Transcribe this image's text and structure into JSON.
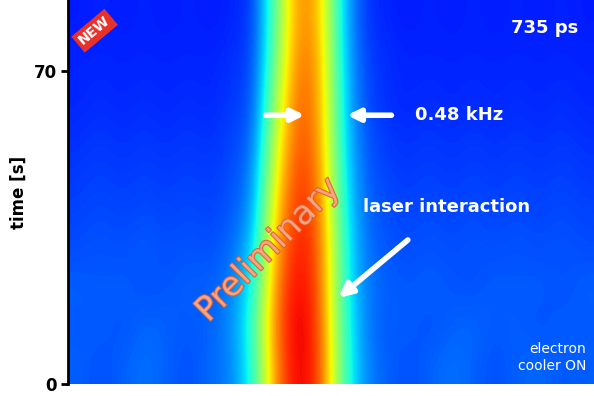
{
  "chart_data": {
    "type": "heatmap",
    "y_label": "time [s]",
    "ylim": [
      0,
      86
    ],
    "yticks": [
      0,
      70
    ],
    "tick_labels": "y",
    "color_range": [
      0,
      1
    ],
    "cells": [
      [
        0.22,
        0.2,
        0.22,
        0.24,
        0.22,
        0.2,
        0.23,
        0.25,
        0.4,
        0.78,
        0.93,
        0.85,
        0.45,
        0.26,
        0.22,
        0.2,
        0.22,
        0.24,
        0.22,
        0.2,
        0.22,
        0.23,
        0.21,
        0.22
      ],
      [
        0.21,
        0.22,
        0.2,
        0.23,
        0.22,
        0.21,
        0.22,
        0.26,
        0.42,
        0.8,
        0.94,
        0.84,
        0.44,
        0.25,
        0.21,
        0.22,
        0.2,
        0.22,
        0.23,
        0.21,
        0.22,
        0.2,
        0.22,
        0.21
      ],
      [
        0.22,
        0.21,
        0.22,
        0.2,
        0.21,
        0.22,
        0.22,
        0.25,
        0.38,
        0.78,
        0.92,
        0.83,
        0.42,
        0.25,
        0.22,
        0.21,
        0.22,
        0.21,
        0.2,
        0.22,
        0.21,
        0.22,
        0.2,
        0.22
      ],
      [
        0.2,
        0.21,
        0.2,
        0.22,
        0.2,
        0.21,
        0.2,
        0.23,
        0.33,
        0.74,
        0.9,
        0.82,
        0.42,
        0.24,
        0.21,
        0.2,
        0.21,
        0.2,
        0.21,
        0.2,
        0.21,
        0.2,
        0.21,
        0.2
      ],
      [
        0.19,
        0.2,
        0.19,
        0.2,
        0.19,
        0.2,
        0.19,
        0.21,
        0.28,
        0.7,
        0.88,
        0.8,
        0.4,
        0.23,
        0.2,
        0.19,
        0.2,
        0.19,
        0.2,
        0.19,
        0.2,
        0.19,
        0.2,
        0.19
      ],
      [
        0.18,
        0.19,
        0.18,
        0.19,
        0.18,
        0.19,
        0.18,
        0.2,
        0.25,
        0.65,
        0.86,
        0.78,
        0.38,
        0.22,
        0.19,
        0.18,
        0.19,
        0.18,
        0.19,
        0.18,
        0.19,
        0.18,
        0.19,
        0.18
      ],
      [
        0.17,
        0.18,
        0.17,
        0.18,
        0.17,
        0.18,
        0.17,
        0.19,
        0.22,
        0.6,
        0.84,
        0.76,
        0.36,
        0.21,
        0.18,
        0.17,
        0.18,
        0.17,
        0.18,
        0.17,
        0.18,
        0.17,
        0.18,
        0.17
      ],
      [
        0.16,
        0.17,
        0.16,
        0.17,
        0.16,
        0.17,
        0.16,
        0.18,
        0.2,
        0.55,
        0.82,
        0.75,
        0.35,
        0.2,
        0.17,
        0.16,
        0.17,
        0.16,
        0.17,
        0.16,
        0.17,
        0.16,
        0.17,
        0.16
      ],
      [
        0.16,
        0.16,
        0.16,
        0.16,
        0.16,
        0.16,
        0.16,
        0.17,
        0.19,
        0.5,
        0.8,
        0.74,
        0.34,
        0.19,
        0.17,
        0.16,
        0.16,
        0.16,
        0.16,
        0.16,
        0.16,
        0.16,
        0.16,
        0.16
      ],
      [
        0.15,
        0.16,
        0.15,
        0.16,
        0.15,
        0.16,
        0.15,
        0.16,
        0.18,
        0.48,
        0.78,
        0.72,
        0.33,
        0.18,
        0.16,
        0.15,
        0.16,
        0.15,
        0.16,
        0.15,
        0.16,
        0.15,
        0.16,
        0.15
      ]
    ],
    "annotations": [
      "735 ps",
      "0.48 kHz",
      "laser interaction",
      "electron\ncooler ON"
    ],
    "badge": "NEW",
    "watermark": "Preliminary"
  }
}
